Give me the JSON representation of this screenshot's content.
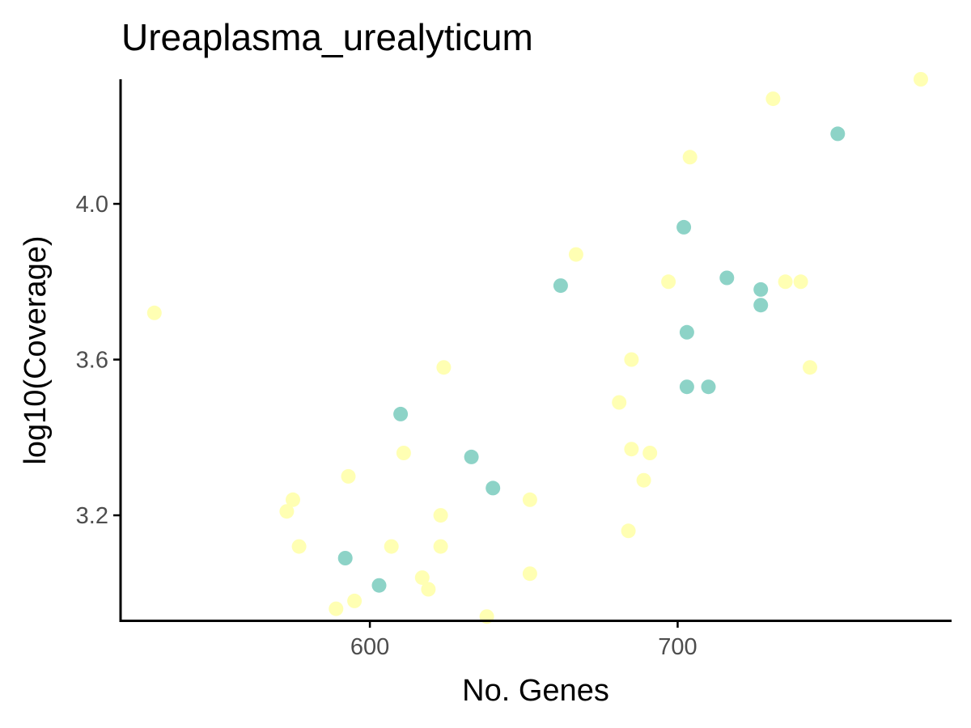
{
  "chart_data": {
    "type": "scatter",
    "title": "Ureaplasma_urealyticum",
    "xlabel": "No. Genes",
    "ylabel": "log10(Coverage)",
    "xlim": [
      519,
      789
    ],
    "ylim": [
      2.93,
      4.32
    ],
    "xticks": [
      "600",
      "700"
    ],
    "yticks": [
      "3.2",
      "3.6",
      "4.0"
    ],
    "grid": false,
    "legend": "none",
    "colors": {
      "teal": "#8dd3c7",
      "yellow": "#ffffb3"
    },
    "points": [
      {
        "x": 530,
        "y": 3.72,
        "color": "yellow"
      },
      {
        "x": 573,
        "y": 3.21,
        "color": "yellow"
      },
      {
        "x": 575,
        "y": 3.24,
        "color": "yellow"
      },
      {
        "x": 577,
        "y": 3.12,
        "color": "yellow"
      },
      {
        "x": 589,
        "y": 2.96,
        "color": "yellow"
      },
      {
        "x": 592,
        "y": 3.09,
        "color": "teal"
      },
      {
        "x": 593,
        "y": 3.3,
        "color": "yellow"
      },
      {
        "x": 595,
        "y": 2.98,
        "color": "yellow"
      },
      {
        "x": 603,
        "y": 3.02,
        "color": "teal"
      },
      {
        "x": 607,
        "y": 3.12,
        "color": "yellow"
      },
      {
        "x": 610,
        "y": 3.46,
        "color": "teal"
      },
      {
        "x": 611,
        "y": 3.36,
        "color": "yellow"
      },
      {
        "x": 617,
        "y": 3.04,
        "color": "yellow"
      },
      {
        "x": 619,
        "y": 3.01,
        "color": "yellow"
      },
      {
        "x": 623,
        "y": 3.2,
        "color": "yellow"
      },
      {
        "x": 623,
        "y": 3.12,
        "color": "yellow"
      },
      {
        "x": 624,
        "y": 3.58,
        "color": "yellow"
      },
      {
        "x": 633,
        "y": 3.35,
        "color": "teal"
      },
      {
        "x": 638,
        "y": 2.94,
        "color": "yellow"
      },
      {
        "x": 640,
        "y": 3.27,
        "color": "teal"
      },
      {
        "x": 652,
        "y": 3.24,
        "color": "yellow"
      },
      {
        "x": 652,
        "y": 3.05,
        "color": "yellow"
      },
      {
        "x": 662,
        "y": 3.79,
        "color": "teal"
      },
      {
        "x": 667,
        "y": 3.87,
        "color": "yellow"
      },
      {
        "x": 681,
        "y": 3.49,
        "color": "yellow"
      },
      {
        "x": 684,
        "y": 3.16,
        "color": "yellow"
      },
      {
        "x": 685,
        "y": 3.6,
        "color": "yellow"
      },
      {
        "x": 685,
        "y": 3.37,
        "color": "yellow"
      },
      {
        "x": 689,
        "y": 3.29,
        "color": "yellow"
      },
      {
        "x": 691,
        "y": 3.36,
        "color": "yellow"
      },
      {
        "x": 697,
        "y": 3.8,
        "color": "yellow"
      },
      {
        "x": 702,
        "y": 3.94,
        "color": "teal"
      },
      {
        "x": 703,
        "y": 3.67,
        "color": "teal"
      },
      {
        "x": 703,
        "y": 3.53,
        "color": "teal"
      },
      {
        "x": 704,
        "y": 4.12,
        "color": "yellow"
      },
      {
        "x": 710,
        "y": 3.53,
        "color": "teal"
      },
      {
        "x": 716,
        "y": 3.81,
        "color": "teal"
      },
      {
        "x": 727,
        "y": 3.78,
        "color": "teal"
      },
      {
        "x": 727,
        "y": 3.74,
        "color": "teal"
      },
      {
        "x": 731,
        "y": 4.27,
        "color": "yellow"
      },
      {
        "x": 735,
        "y": 3.8,
        "color": "yellow"
      },
      {
        "x": 740,
        "y": 3.8,
        "color": "yellow"
      },
      {
        "x": 743,
        "y": 3.58,
        "color": "yellow"
      },
      {
        "x": 752,
        "y": 4.18,
        "color": "teal"
      },
      {
        "x": 779,
        "y": 4.32,
        "color": "yellow"
      }
    ]
  }
}
